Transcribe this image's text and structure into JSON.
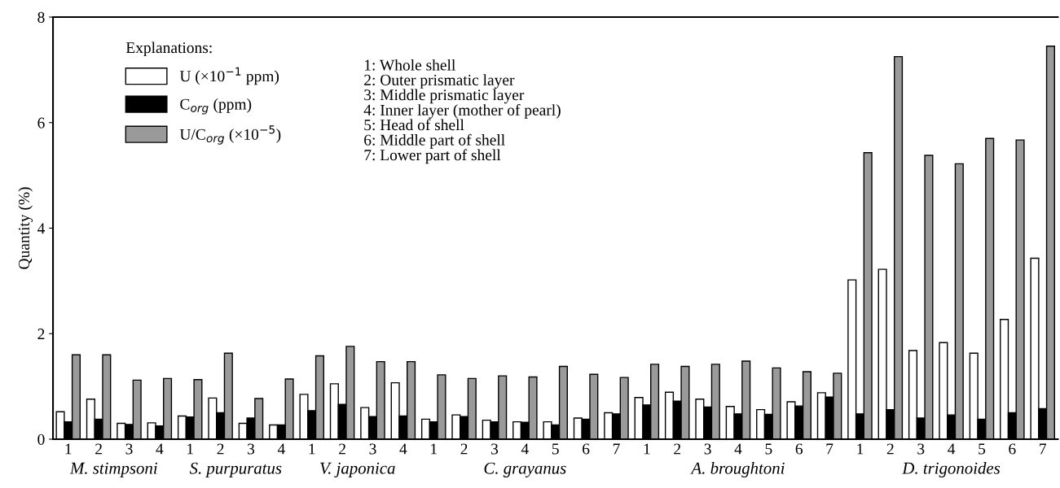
{
  "chart_data": [
    {
      "type": "bar",
      "xlabel": "M. stimpsoni",
      "ylabel": "Quantity (%)",
      "legend_title": "Explanations:",
      "legend": "top right",
      "categories": [
        "1",
        "2",
        "3",
        "4"
      ],
      "ylim": [
        0,
        8
      ],
      "yticks": [
        0,
        2,
        4,
        6,
        8
      ],
      "annotations": [
        "1: Whole shell",
        "2: Outer prismatic layer",
        "3: Middle prismatic layer",
        "4: Inner layer (mother of pearl)",
        "5: Head of shell",
        "6: Middle part of shell",
        "7: Lower part of shell"
      ],
      "series": [
        {
          "name": "U (×10$^{−1}$ ppm)",
          "color": "#ffffff",
          "values": [
            0.52,
            0.76,
            0.3,
            0.31
          ]
        },
        {
          "name": "C$_{org}$ (ppm)",
          "color": "#000000",
          "values": [
            0.33,
            0.38,
            0.28,
            0.25
          ]
        },
        {
          "name": "U/C$_{org}$ (×10$^{−5}$)",
          "color": "#9a9a9a",
          "values": [
            1.6,
            1.6,
            1.12,
            1.15
          ]
        }
      ]
    },
    {
      "type": "bar",
      "xlabel": "S. purpuratus",
      "categories": [
        "1",
        "2",
        "3",
        "4"
      ],
      "ylim": [
        0,
        8
      ],
      "tick_labels": "x",
      "series": [
        {
          "color": "#ffffff",
          "values": [
            0.44,
            0.78,
            0.3,
            0.27
          ]
        },
        {
          "color": "#000000",
          "values": [
            0.42,
            0.5,
            0.4,
            0.27
          ]
        },
        {
          "color": "#9a9a9a",
          "values": [
            1.13,
            1.63,
            0.77,
            1.14
          ]
        }
      ]
    },
    {
      "type": "bar",
      "xlabel": "V. japonica",
      "categories": [
        "1",
        "2",
        "3",
        "4"
      ],
      "ylim": [
        0,
        8
      ],
      "tick_labels": "x",
      "series": [
        {
          "color": "#ffffff",
          "values": [
            0.85,
            1.05,
            0.6,
            1.07
          ]
        },
        {
          "color": "#000000",
          "values": [
            0.54,
            0.66,
            0.43,
            0.44
          ]
        },
        {
          "color": "#9a9a9a",
          "values": [
            1.58,
            1.76,
            1.47,
            1.47
          ]
        }
      ]
    },
    {
      "type": "bar",
      "xlabel": "C. grayanus",
      "categories": [
        "1",
        "2",
        "3",
        "4",
        "5",
        "6",
        "7"
      ],
      "ylim": [
        0,
        8
      ],
      "tick_labels": "x",
      "series": [
        {
          "color": "#ffffff",
          "values": [
            0.38,
            0.46,
            0.36,
            0.33,
            0.33,
            0.4,
            0.5
          ]
        },
        {
          "color": "#000000",
          "values": [
            0.33,
            0.43,
            0.33,
            0.32,
            0.27,
            0.38,
            0.48
          ]
        },
        {
          "color": "#9a9a9a",
          "values": [
            1.22,
            1.15,
            1.2,
            1.18,
            1.38,
            1.23,
            1.17
          ]
        }
      ]
    },
    {
      "type": "bar",
      "xlabel": "A. broughtoni",
      "categories": [
        "1",
        "2",
        "3",
        "4",
        "5",
        "6",
        "7"
      ],
      "ylim": [
        0,
        8
      ],
      "tick_labels": "x",
      "series": [
        {
          "color": "#ffffff",
          "values": [
            0.79,
            0.89,
            0.76,
            0.62,
            0.56,
            0.71,
            0.88
          ]
        },
        {
          "color": "#000000",
          "values": [
            0.65,
            0.72,
            0.61,
            0.48,
            0.47,
            0.63,
            0.8
          ]
        },
        {
          "color": "#9a9a9a",
          "values": [
            1.42,
            1.38,
            1.42,
            1.48,
            1.35,
            1.28,
            1.25
          ]
        }
      ]
    },
    {
      "type": "bar",
      "xlabel": "D. trigonoides",
      "categories": [
        "1",
        "2",
        "3",
        "4",
        "5",
        "6",
        "7"
      ],
      "ylim": [
        0,
        8
      ],
      "tick_labels": "x",
      "series": [
        {
          "color": "#ffffff",
          "values": [
            3.02,
            3.22,
            1.68,
            1.83,
            1.63,
            2.27,
            3.43
          ]
        },
        {
          "color": "#000000",
          "values": [
            0.48,
            0.56,
            0.4,
            0.46,
            0.38,
            0.5,
            0.58
          ]
        },
        {
          "color": "#9a9a9a",
          "values": [
            5.43,
            7.25,
            5.38,
            5.22,
            5.7,
            5.67,
            7.45
          ]
        }
      ]
    }
  ]
}
